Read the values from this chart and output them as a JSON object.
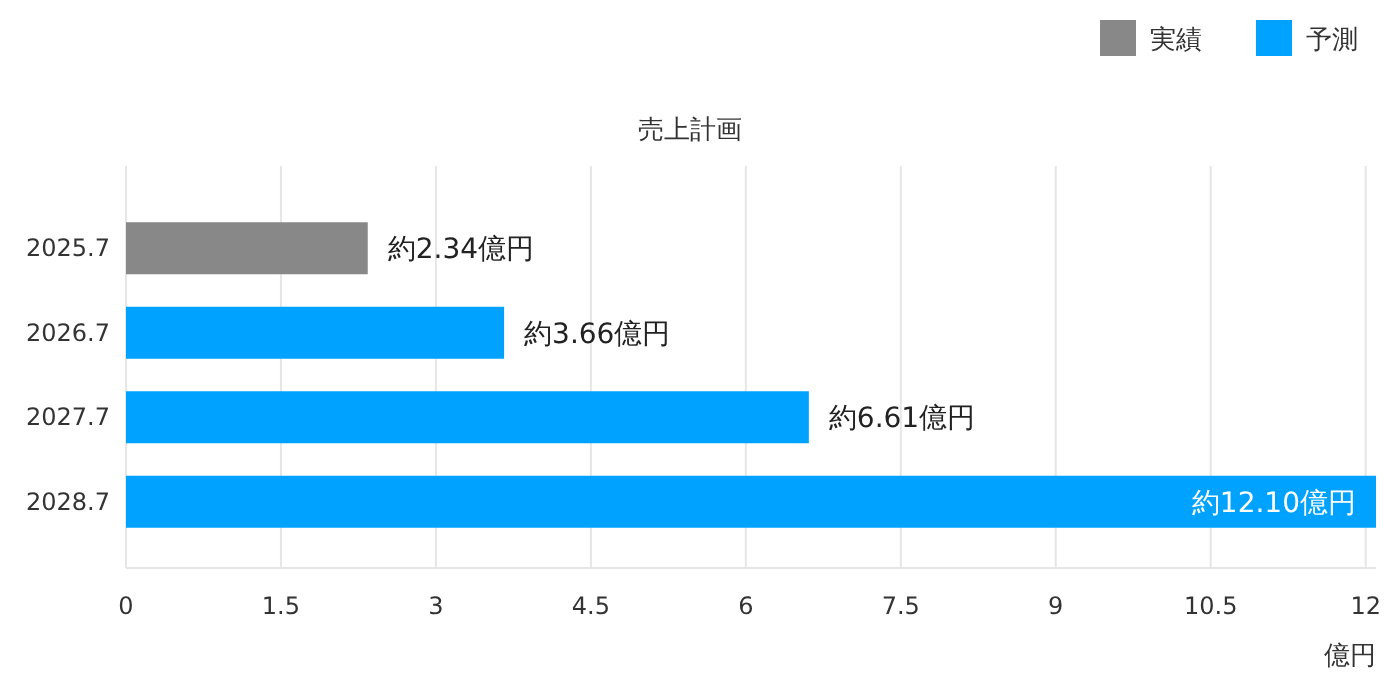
{
  "chart_data": {
    "type": "bar",
    "orientation": "horizontal",
    "title": "売上計画",
    "xlabel": "億円",
    "categories": [
      "2025.7",
      "2026.7",
      "2027.7",
      "2028.7"
    ],
    "series": [
      {
        "name": "実績",
        "color": "#888888",
        "values": [
          2.34,
          null,
          null,
          null
        ],
        "value_labels": [
          "約2.34億円",
          null,
          null,
          null
        ]
      },
      {
        "name": "予測",
        "color": "#00a2ff",
        "values": [
          null,
          3.66,
          6.61,
          12.1
        ],
        "value_labels": [
          null,
          "約3.66億円",
          "約6.61億円",
          "約12.10億円"
        ]
      }
    ],
    "xlim": [
      0,
      12.1
    ],
    "xticks": [
      0,
      1.5,
      3,
      4.5,
      6,
      7.5,
      9,
      10.5,
      12
    ],
    "grid": "x",
    "legend": "top right"
  }
}
